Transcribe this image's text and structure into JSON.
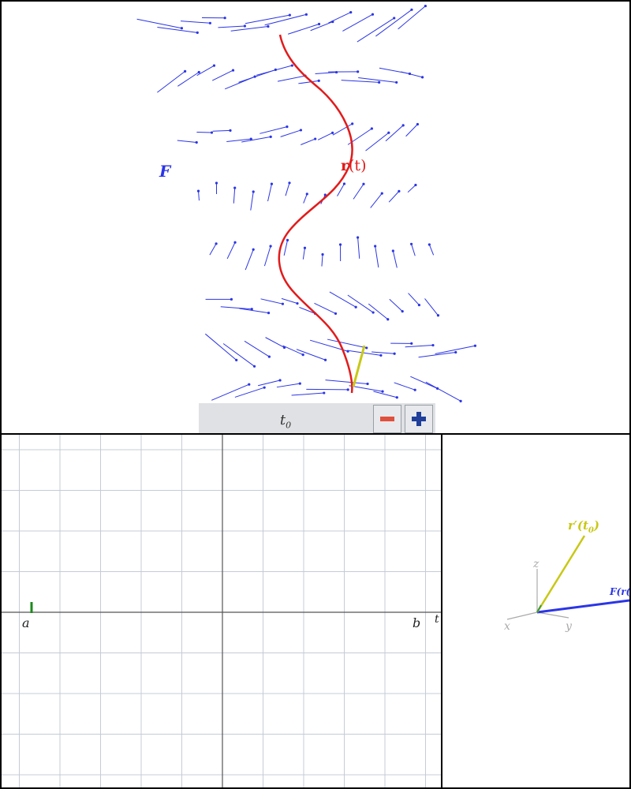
{
  "top_panel": {
    "field_label": "F",
    "curve_label_bold": "r",
    "curve_label_rest": "(t)",
    "curve_color": "#e21b1b",
    "field_color": "#2b35e6",
    "tangent_color": "#c8c816"
  },
  "slider": {
    "label_main": "t",
    "label_sub": "0",
    "minus_icon": "minus-icon",
    "plus_icon": "plus-icon",
    "minus_color": "#e0503c",
    "plus_color": "#1f3f9a"
  },
  "graph_panel": {
    "label_a": "a",
    "label_b": "b",
    "axis_label": "t",
    "marker_color": "#1a8a1a",
    "grid_color": "#c4ccd6"
  },
  "axes_panel": {
    "tangent_label": "r′(t",
    "tangent_label_sub": "0",
    "tangent_label_end": ")",
    "field_label": "F(r(",
    "axis_z": "z",
    "axis_x": "x",
    "axis_y": "y"
  }
}
